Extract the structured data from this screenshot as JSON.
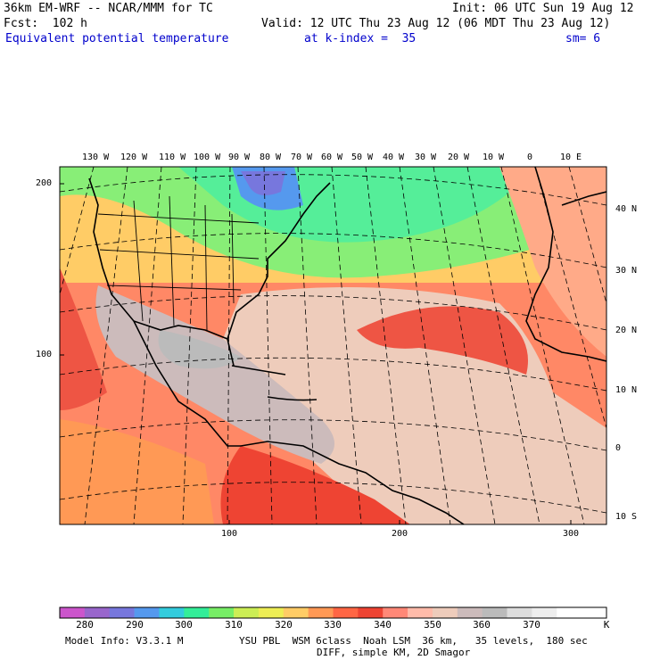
{
  "header": {
    "model_line": "36km EM-WRF -- NCAR/MMM for TC",
    "init_line": "Init: 06 UTC Sun 19 Aug 12",
    "fcst_line": "Fcst:  102 h",
    "valid_line": "Valid: 12 UTC Thu 23 Aug 12 (06 MDT Thu 23 Aug 12)",
    "field_name": "Equivalent potential temperature",
    "level_text": "at k-index =  35",
    "smooth_text": "sm= 6"
  },
  "map": {
    "lon_labels": [
      "130 W",
      "120 W",
      "110 W",
      "100 W",
      "90 W",
      "80 W",
      "70 W",
      "60 W",
      "50 W",
      "40 W",
      "30 W",
      "20 W",
      "10 W",
      "0",
      "10 E"
    ],
    "lat_labels": [
      "40 N",
      "30 N",
      "20 N",
      "10 N",
      "0",
      "10 S"
    ],
    "grid_y_labels": [
      "200",
      "100"
    ],
    "grid_x_labels": [
      "100",
      "200",
      "300"
    ]
  },
  "colorbar": {
    "labels": [
      "280",
      "290",
      "300",
      "310",
      "320",
      "330",
      "340",
      "350",
      "360",
      "370"
    ],
    "unit": "K",
    "colors": [
      "#cc55cc",
      "#9966cc",
      "#7777dd",
      "#5599ee",
      "#33ccdd",
      "#33ee99",
      "#77ee66",
      "#ccee55",
      "#eeee55",
      "#ffcc66",
      "#ff9955",
      "#ff6644",
      "#ee4433",
      "#ff8877",
      "#ffbbaa",
      "#eeccbb",
      "#ccbbbb",
      "#bbbbbb",
      "#dddddd",
      "#eeeeee",
      "#ffffff",
      "#ffffff"
    ]
  },
  "footer": {
    "model_info": "Model Info: V3.3.1 M",
    "physics_line": "YSU PBL  WSM 6class  Noah LSM  36 km,   35 levels,  180 sec",
    "diff_line": "DIFF, simple KM, 2D Smagor"
  }
}
